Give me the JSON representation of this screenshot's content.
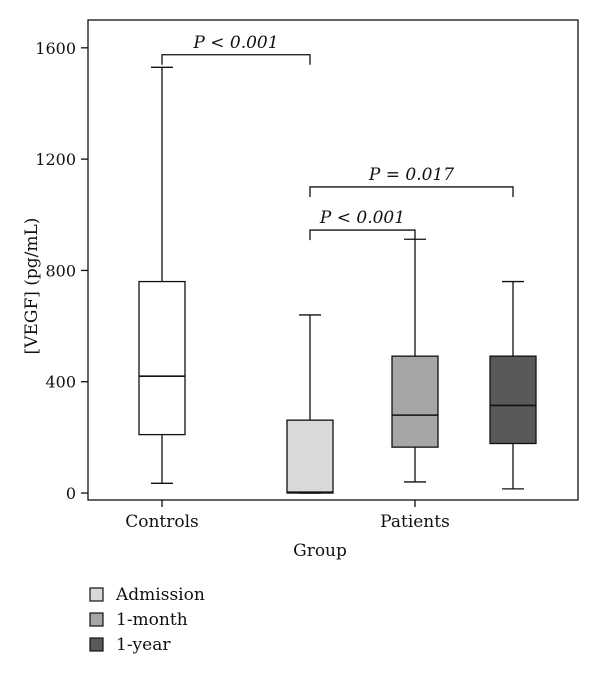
{
  "chart_data": {
    "type": "boxplot",
    "xlabel": "Group",
    "ylabel": "[VEGF] (pg/mL)",
    "ylim": [
      -25,
      1700
    ],
    "yticks": [
      0,
      400,
      800,
      1200,
      1600
    ],
    "categories": [
      "Controls",
      "Patients"
    ],
    "series": [
      {
        "name": "",
        "category": "Controls",
        "color": "#ffffff",
        "whisker_low": 35,
        "q1": 210,
        "median": 420,
        "q3": 760,
        "whisker_high": 1530
      },
      {
        "name": "Admission",
        "category": "Patients",
        "color": "#d9d9d9",
        "whisker_low": 0,
        "q1": 0,
        "median": 3,
        "q3": 262,
        "whisker_high": 640
      },
      {
        "name": "1-month",
        "category": "Patients",
        "color": "#a6a6a6",
        "whisker_low": 40,
        "q1": 165,
        "median": 280,
        "q3": 492,
        "whisker_high": 912
      },
      {
        "name": "1-year",
        "category": "Patients",
        "color": "#595959",
        "whisker_low": 15,
        "q1": 178,
        "median": 315,
        "q3": 492,
        "whisker_high": 760
      }
    ],
    "annotations": [
      {
        "text": "P < 0.001",
        "from": 0,
        "to": 1,
        "y": 1575
      },
      {
        "text": "P = 0.017",
        "from": 1,
        "to": 3,
        "y": 1100
      },
      {
        "text": "P < 0.001",
        "from": 1,
        "to": 2,
        "y": 945
      }
    ],
    "legend": {
      "position": "bottom-left",
      "entries": [
        {
          "label": "Admission",
          "color": "#d9d9d9"
        },
        {
          "label": "1-month",
          "color": "#a6a6a6"
        },
        {
          "label": "1-year",
          "color": "#595959"
        }
      ]
    }
  }
}
